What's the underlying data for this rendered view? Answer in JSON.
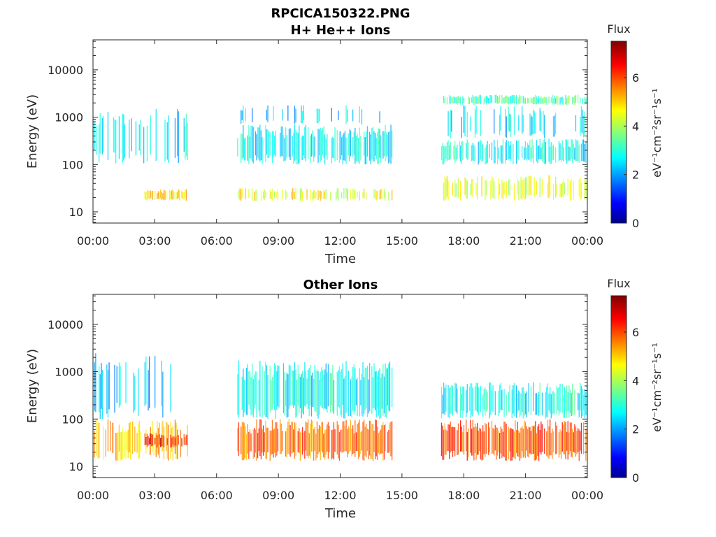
{
  "figure": {
    "title_line1": "RPCICA150322.PNG",
    "title_line2": "H+ He++ Ions"
  },
  "chart_data": [
    {
      "type": "heatmap",
      "title": "H+ He++ Ions",
      "xlabel": "Time",
      "ylabel": "Energy (eV)",
      "x_ticks": [
        "00:00",
        "03:00",
        "06:00",
        "09:00",
        "12:00",
        "15:00",
        "18:00",
        "21:00",
        "00:00"
      ],
      "x_range_hours": [
        0,
        24
      ],
      "y_ticks": [
        {
          "value": 10,
          "label": "10"
        },
        {
          "value": 100,
          "label": "100"
        },
        {
          "value": 1000,
          "label": "1000"
        },
        {
          "value": 10000,
          "label": "10000"
        }
      ],
      "y_range": [
        5.8,
        43000
      ],
      "y_scale": "log",
      "colorbar": {
        "label": "Flux",
        "unit_label": "eV⁻¹cm⁻²sr⁻¹s⁻¹",
        "range": [
          0,
          7.5
        ],
        "ticks": [
          "0",
          "2",
          "4",
          "6"
        ],
        "colormap": "jet"
      },
      "blocks": [
        {
          "t0": 0.0,
          "t1": 4.6,
          "e_lo": 100,
          "e_hi": 1500,
          "flux": 2.6,
          "density": 0.35
        },
        {
          "t0": 2.5,
          "t1": 4.6,
          "e_lo": 17,
          "e_hi": 30,
          "flux": 4.8,
          "density": 0.8
        },
        {
          "t0": 7.0,
          "t1": 14.5,
          "e_lo": 100,
          "e_hi": 700,
          "flux": 2.8,
          "density": 0.8
        },
        {
          "t0": 7.0,
          "t1": 14.5,
          "e_lo": 700,
          "e_hi": 1800,
          "flux": 2.4,
          "density": 0.2
        },
        {
          "t0": 7.0,
          "t1": 14.5,
          "e_lo": 17,
          "e_hi": 32,
          "flux": 4.6,
          "density": 0.55
        },
        {
          "t0": 16.9,
          "t1": 24.0,
          "e_lo": 100,
          "e_hi": 350,
          "flux": 2.9,
          "density": 0.75
        },
        {
          "t0": 16.9,
          "t1": 24.0,
          "e_lo": 1800,
          "e_hi": 3000,
          "flux": 3.3,
          "density": 0.8
        },
        {
          "t0": 16.9,
          "t1": 24.0,
          "e_lo": 350,
          "e_hi": 1800,
          "flux": 2.5,
          "density": 0.3
        },
        {
          "t0": 16.9,
          "t1": 24.0,
          "e_lo": 17,
          "e_hi": 60,
          "flux": 4.4,
          "density": 0.6
        }
      ]
    },
    {
      "type": "heatmap",
      "title": "Other Ions",
      "xlabel": "Time",
      "ylabel": "Energy (eV)",
      "x_ticks": [
        "00:00",
        "03:00",
        "06:00",
        "09:00",
        "12:00",
        "15:00",
        "18:00",
        "21:00",
        "00:00"
      ],
      "x_range_hours": [
        0,
        24
      ],
      "y_ticks": [
        {
          "value": 10,
          "label": "10"
        },
        {
          "value": 100,
          "label": "100"
        },
        {
          "value": 1000,
          "label": "1000"
        },
        {
          "value": 10000,
          "label": "10000"
        }
      ],
      "y_range": [
        5.8,
        43000
      ],
      "y_scale": "log",
      "colorbar": {
        "label": "Flux",
        "unit_label": "eV⁻¹cm⁻²sr⁻¹s⁻¹",
        "range": [
          0,
          7.5
        ],
        "ticks": [
          "0",
          "2",
          "4",
          "6"
        ],
        "colormap": "jet"
      },
      "blocks": [
        {
          "t0": 0.0,
          "t1": 4.6,
          "e_lo": 100,
          "e_hi": 2500,
          "flux": 2.4,
          "density": 0.3
        },
        {
          "t0": 0.0,
          "t1": 4.6,
          "e_lo": 13,
          "e_hi": 100,
          "flux": 5.2,
          "density": 0.6
        },
        {
          "t0": 2.5,
          "t1": 4.6,
          "e_lo": 25,
          "e_hi": 50,
          "flux": 6.4,
          "density": 0.7
        },
        {
          "t0": 7.0,
          "t1": 14.5,
          "e_lo": 100,
          "e_hi": 1800,
          "flux": 2.8,
          "density": 0.85
        },
        {
          "t0": 7.0,
          "t1": 14.5,
          "e_lo": 13,
          "e_hi": 100,
          "flux": 5.8,
          "density": 0.9
        },
        {
          "t0": 16.9,
          "t1": 24.0,
          "e_lo": 100,
          "e_hi": 600,
          "flux": 2.9,
          "density": 0.8
        },
        {
          "t0": 16.9,
          "t1": 24.0,
          "e_lo": 13,
          "e_hi": 100,
          "flux": 6.0,
          "density": 0.9
        }
      ]
    }
  ]
}
